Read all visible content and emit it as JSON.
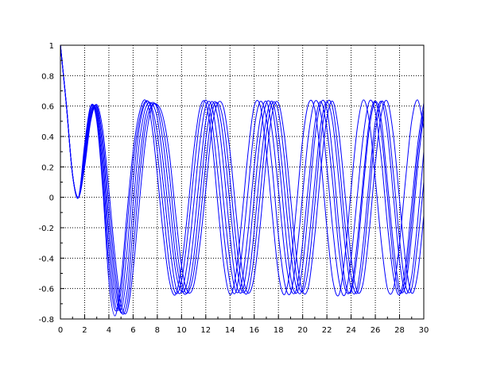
{
  "chart_data": {
    "type": "line",
    "title": "",
    "xlabel": "",
    "ylabel": "",
    "xlim": [
      0,
      30
    ],
    "ylim": [
      -0.8,
      1
    ],
    "x_ticks": [
      0,
      2,
      4,
      6,
      8,
      10,
      12,
      14,
      16,
      18,
      20,
      22,
      24,
      26,
      28,
      30
    ],
    "y_ticks": [
      -0.8,
      -0.6,
      -0.4,
      -0.2,
      0,
      0.2,
      0.4,
      0.6,
      0.8,
      1
    ],
    "x_tick_labels": [
      "0",
      "2",
      "4",
      "6",
      "8",
      "10",
      "12",
      "14",
      "16",
      "18",
      "20",
      "22",
      "24",
      "26",
      "28",
      "30"
    ],
    "y_tick_labels": [
      "-0.8",
      "-0.6",
      "-0.4",
      "-0.2",
      "0",
      "0.2",
      "0.4",
      "0.6",
      "0.8",
      "1"
    ],
    "grid": true,
    "line_color": "#0000ff",
    "x": [
      0,
      0.5,
      1,
      1.5,
      2,
      2.5,
      3,
      3.5,
      4,
      4.5,
      5,
      5.5,
      6,
      6.5,
      7,
      7.5,
      8,
      8.5,
      9,
      9.5,
      10,
      10.5,
      11,
      11.5,
      12,
      12.5,
      13,
      13.5,
      14,
      14.5,
      15,
      15.5,
      16,
      16.5,
      17,
      17.5,
      18,
      18.5,
      19,
      19.5,
      20,
      20.5,
      21,
      21.5,
      22,
      22.5,
      23,
      23.5,
      24,
      24.5,
      25,
      25.5,
      26,
      26.5,
      27,
      27.5,
      28,
      28.5,
      29,
      29.5,
      30
    ],
    "series": [
      {
        "values": [
          1,
          0.6,
          0.15,
          0,
          0.35,
          0.6,
          0.5,
          0.05,
          -0.55,
          -0.78,
          -0.55,
          -0.1,
          0.3,
          0.55,
          0.64,
          0.5,
          0.15,
          -0.25,
          -0.55,
          -0.64,
          -0.45,
          -0.1,
          0.3,
          0.58,
          0.62,
          0.38,
          -0.05,
          -0.45,
          -0.64,
          -0.5,
          -0.12,
          0.3,
          0.6,
          0.6,
          0.3,
          -0.12,
          -0.5,
          -0.64,
          -0.45,
          -0.05,
          0.38,
          0.62,
          0.58,
          0.25,
          -0.2,
          -0.55,
          -0.64,
          -0.38,
          0.05,
          0.45,
          0.64,
          0.5,
          0.12,
          -0.3,
          -0.6,
          -0.6,
          -0.3,
          0.12,
          0.5,
          0.64,
          0.45
        ]
      },
      {
        "values": [
          1,
          0.6,
          0.15,
          0,
          0.33,
          0.6,
          0.52,
          0.1,
          -0.45,
          -0.74,
          -0.62,
          -0.2,
          0.22,
          0.5,
          0.63,
          0.58,
          0.3,
          -0.08,
          -0.45,
          -0.63,
          -0.55,
          -0.25,
          0.15,
          0.5,
          0.64,
          0.5,
          0.15,
          -0.25,
          -0.56,
          -0.62,
          -0.35,
          0.05,
          0.45,
          0.63,
          0.52,
          0.18,
          -0.25,
          -0.56,
          -0.63,
          -0.38,
          0.02,
          0.42,
          0.63,
          0.55,
          0.2,
          -0.22,
          -0.55,
          -0.64,
          -0.4,
          0.0,
          0.4,
          0.63,
          0.56,
          0.25,
          -0.18,
          -0.52,
          -0.64,
          -0.45,
          -0.05,
          0.35,
          0.62
        ]
      },
      {
        "values": [
          1,
          0.6,
          0.15,
          0,
          0.3,
          0.58,
          0.55,
          0.18,
          -0.35,
          -0.7,
          -0.7,
          -0.35,
          0.1,
          0.45,
          0.62,
          0.6,
          0.42,
          0.08,
          -0.3,
          -0.58,
          -0.62,
          -0.42,
          -0.05,
          0.35,
          0.6,
          0.6,
          0.35,
          -0.05,
          -0.42,
          -0.62,
          -0.55,
          -0.22,
          0.2,
          0.52,
          0.63,
          0.42,
          0.05,
          -0.35,
          -0.6,
          -0.6,
          -0.3,
          0.1,
          0.48,
          0.63,
          0.45,
          0.08,
          -0.35,
          -0.6,
          -0.6,
          -0.3,
          0.12,
          0.5,
          0.63,
          0.42,
          0.0,
          -0.42,
          -0.63,
          -0.52,
          -0.15,
          0.28,
          0.58
        ]
      },
      {
        "values": [
          1,
          0.6,
          0.15,
          0,
          0.28,
          0.56,
          0.57,
          0.25,
          -0.25,
          -0.63,
          -0.74,
          -0.5,
          -0.05,
          0.35,
          0.58,
          0.62,
          0.52,
          0.22,
          -0.15,
          -0.48,
          -0.62,
          -0.55,
          -0.25,
          0.15,
          0.5,
          0.63,
          0.52,
          0.18,
          -0.25,
          -0.56,
          -0.62,
          -0.4,
          0.0,
          0.4,
          0.62,
          0.58,
          0.28,
          -0.15,
          -0.52,
          -0.63,
          -0.45,
          -0.05,
          0.38,
          0.62,
          0.58,
          0.25,
          -0.2,
          -0.55,
          -0.62,
          -0.38,
          0.05,
          0.45,
          0.63,
          0.5,
          0.1,
          -0.32,
          -0.6,
          -0.58,
          -0.25,
          0.2,
          0.55
        ]
      },
      {
        "values": [
          1,
          0.6,
          0.15,
          0,
          0.25,
          0.54,
          0.59,
          0.32,
          -0.15,
          -0.55,
          -0.76,
          -0.62,
          -0.2,
          0.22,
          0.52,
          0.62,
          0.58,
          0.35,
          0.0,
          -0.38,
          -0.6,
          -0.62,
          -0.4,
          -0.02,
          0.38,
          0.6,
          0.6,
          0.35,
          -0.05,
          -0.42,
          -0.62,
          -0.55,
          -0.22,
          0.2,
          0.52,
          0.63,
          0.42,
          0.05,
          -0.35,
          -0.6,
          -0.6,
          -0.3,
          0.1,
          0.48,
          0.63,
          0.48,
          0.1,
          -0.32,
          -0.6,
          -0.6,
          -0.3,
          0.12,
          0.5,
          0.63,
          0.42,
          0.0,
          -0.42,
          -0.63,
          -0.52,
          -0.15,
          0.3
        ]
      },
      {
        "values": [
          1,
          0.6,
          0.15,
          0,
          0.22,
          0.52,
          0.6,
          0.38,
          -0.05,
          -0.47,
          -0.75,
          -0.7,
          -0.35,
          0.1,
          0.45,
          0.6,
          0.6,
          0.45,
          0.15,
          -0.25,
          -0.55,
          -0.63,
          -0.5,
          -0.18,
          0.22,
          0.55,
          0.62,
          0.48,
          0.12,
          -0.28,
          -0.58,
          -0.62,
          -0.38,
          0.02,
          0.42,
          0.62,
          0.56,
          0.25,
          -0.18,
          -0.52,
          -0.62,
          -0.45,
          -0.05,
          0.38,
          0.62,
          0.58,
          0.25,
          -0.18,
          -0.52,
          -0.63,
          -0.42,
          0.0,
          0.42,
          0.63,
          0.52,
          0.15,
          -0.28,
          -0.58,
          -0.6,
          -0.3,
          0.1
        ]
      },
      {
        "values": [
          1,
          0.6,
          0.15,
          0,
          0.2,
          0.5,
          0.61,
          0.44,
          0.05,
          -0.38,
          -0.7,
          -0.75,
          -0.48,
          -0.05,
          0.35,
          0.58,
          0.61,
          0.52,
          0.28,
          -0.1,
          -0.45,
          -0.62,
          -0.58,
          -0.32,
          0.05,
          0.45,
          0.62,
          0.58,
          0.3,
          -0.1,
          -0.48,
          -0.63,
          -0.52,
          -0.18,
          0.25,
          0.56,
          0.62,
          0.4,
          0.0,
          -0.4,
          -0.62,
          -0.58,
          -0.25,
          0.18,
          0.52,
          0.63,
          0.42,
          0.02,
          -0.4,
          -0.62,
          -0.56,
          -0.22,
          0.22,
          0.55,
          0.63,
          0.4,
          -0.02,
          -0.42,
          -0.63,
          -0.5,
          -0.12
        ]
      }
    ]
  }
}
